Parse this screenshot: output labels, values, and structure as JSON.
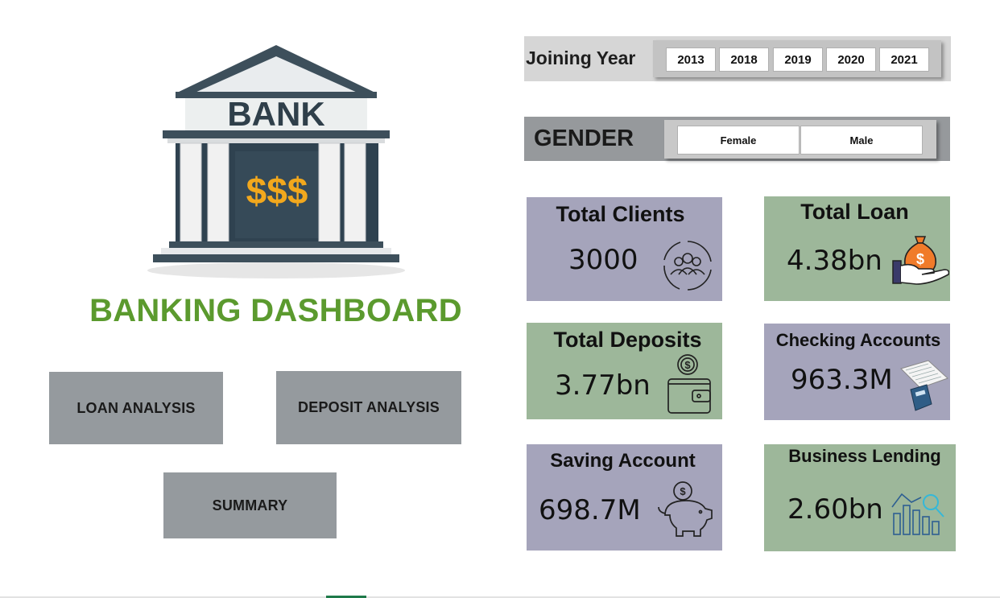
{
  "logo": {
    "text": "BANK",
    "currency": "$$$",
    "colors": {
      "roof": "#3a4a54",
      "column": "#f2f2f2",
      "gold": "#f2a81d"
    }
  },
  "title": "BANKING DASHBOARD",
  "nav": {
    "loan": "LOAN ANALYSIS",
    "deposit": "DEPOSIT ANALYSIS",
    "summary": "SUMMARY"
  },
  "year_slicer": {
    "label": "Joining Year",
    "options": [
      "2013",
      "2018",
      "2019",
      "2020",
      "2021"
    ]
  },
  "gender_slicer": {
    "label": "GENDER",
    "options": [
      "Female",
      "Male"
    ]
  },
  "kpis": {
    "clients": {
      "title": "Total Clients",
      "value": "3000",
      "icon": "users-cycle-icon"
    },
    "loan": {
      "title": "Total Loan",
      "value": "4.38bn",
      "icon": "money-bag-hand-icon"
    },
    "deposits": {
      "title": "Total Deposits",
      "value": "3.77bn",
      "icon": "wallet-coin-icon"
    },
    "checking": {
      "title": "Checking Accounts",
      "value": "963.3M",
      "icon": "ledger-calculator-icon"
    },
    "saving": {
      "title": "Saving Account",
      "value": "698.7M",
      "icon": "piggy-bank-icon"
    },
    "business": {
      "title": "Business Lending",
      "value": "2.60bn",
      "icon": "growth-chart-icon"
    }
  },
  "colors": {
    "title_green": "#5b9a2e",
    "card_purple": "#a5a4bb",
    "card_green": "#9db79a",
    "button_gray": "#959a9e"
  }
}
